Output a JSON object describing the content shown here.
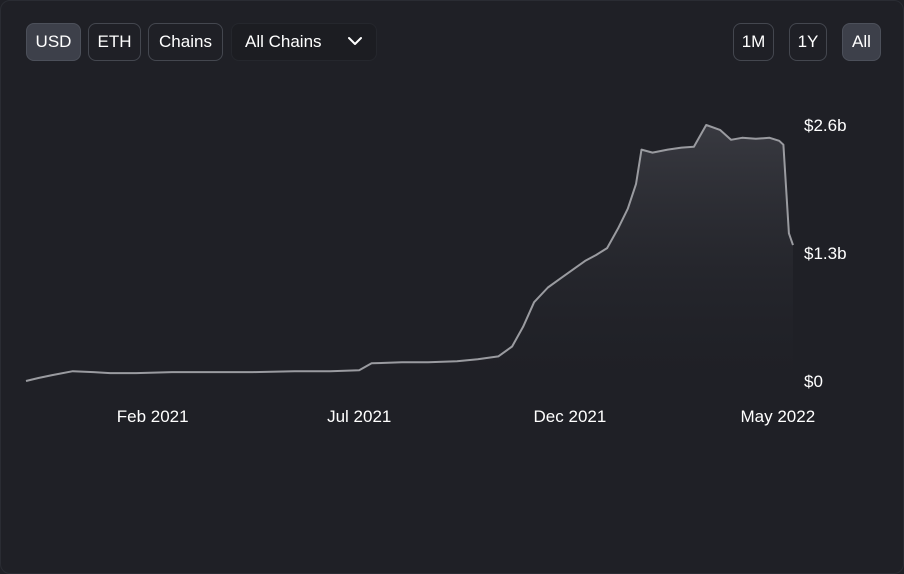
{
  "controls": {
    "currency_buttons": [
      {
        "label": "USD",
        "active": true
      },
      {
        "label": "ETH",
        "active": false
      },
      {
        "label": "Chains",
        "active": false
      }
    ],
    "chain_select": {
      "value": "All Chains"
    },
    "range_buttons": [
      {
        "label": "1M",
        "active": false
      },
      {
        "label": "1Y",
        "active": false
      },
      {
        "label": "All",
        "active": true
      }
    ]
  },
  "colors": {
    "background": "#1f2026",
    "line": "#9a9ba0",
    "button_active": "#3d404a",
    "button_border": "#44474f"
  },
  "chart_data": {
    "type": "area",
    "title": "",
    "xlabel": "",
    "ylabel": "",
    "x_ticks": [
      "Feb 2021",
      "Jul 2021",
      "Dec 2021",
      "May 2022"
    ],
    "y_ticks": [
      "$2.6b",
      "$1.3b",
      "$0"
    ],
    "ylim": [
      0,
      2.6
    ],
    "y_unit": "billion USD",
    "xlim": [
      "2020-11-01",
      "2022-05-12"
    ],
    "series": [
      {
        "x": [
          "2020-11-01",
          "2020-11-10",
          "2020-11-20",
          "2020-12-05",
          "2020-12-20",
          "2021-01-01",
          "2021-01-20",
          "2021-02-15",
          "2021-03-15",
          "2021-04-15",
          "2021-05-15",
          "2021-06-10",
          "2021-07-01",
          "2021-07-10",
          "2021-08-01",
          "2021-08-20",
          "2021-09-10",
          "2021-09-25",
          "2021-10-10",
          "2021-10-20",
          "2021-10-28",
          "2021-11-05",
          "2021-11-15",
          "2021-11-25",
          "2021-12-05",
          "2021-12-12",
          "2021-12-20",
          "2021-12-28",
          "2022-01-05",
          "2022-01-12",
          "2022-01-18",
          "2022-01-22",
          "2022-01-30",
          "2022-02-10",
          "2022-02-20",
          "2022-03-01",
          "2022-03-10",
          "2022-03-20",
          "2022-03-28",
          "2022-04-05",
          "2022-04-15",
          "2022-04-25",
          "2022-05-02",
          "2022-05-05",
          "2022-05-09",
          "2022-05-12"
        ],
        "y": [
          0.0,
          0.03,
          0.06,
          0.1,
          0.09,
          0.08,
          0.08,
          0.09,
          0.09,
          0.09,
          0.1,
          0.1,
          0.11,
          0.18,
          0.19,
          0.19,
          0.2,
          0.22,
          0.25,
          0.35,
          0.55,
          0.8,
          0.95,
          1.05,
          1.15,
          1.22,
          1.28,
          1.35,
          1.55,
          1.75,
          2.0,
          2.35,
          2.32,
          2.35,
          2.37,
          2.38,
          2.6,
          2.55,
          2.45,
          2.47,
          2.46,
          2.47,
          2.44,
          2.4,
          1.5,
          1.38
        ]
      }
    ]
  }
}
